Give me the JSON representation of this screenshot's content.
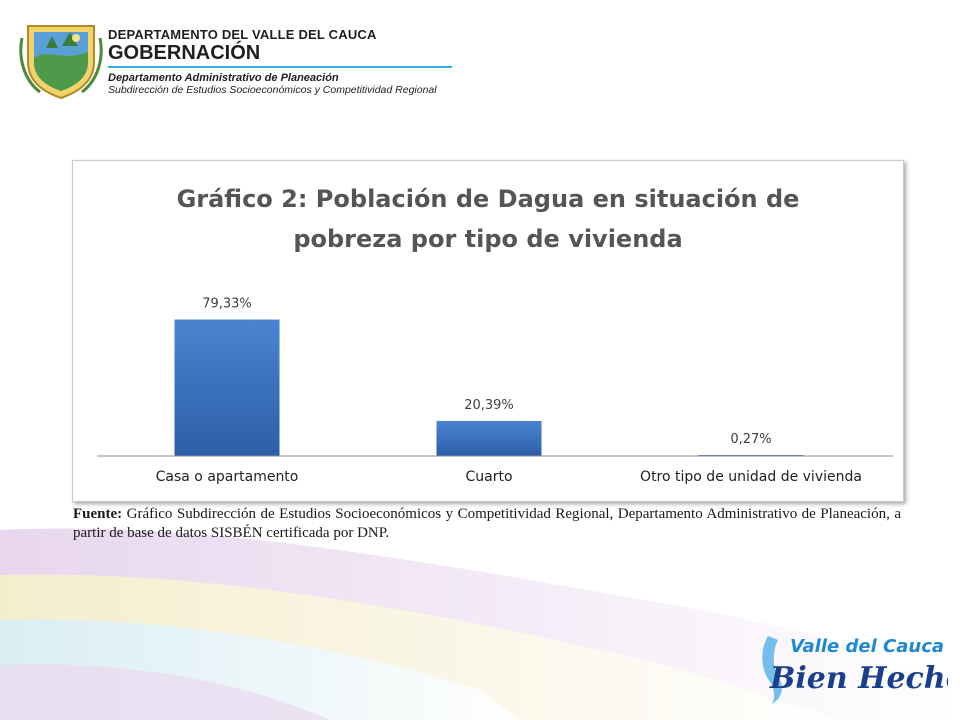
{
  "header": {
    "department": "DEPARTAMENTO DEL VALLE DEL CAUCA",
    "gobernacion": "GOBERNACIÓN",
    "admin_dept": "Departamento  Administrativo de Planeación",
    "subdirection": "Subdirección de Estudios Socioeconómicos y Competitividad Regional"
  },
  "chart_data": {
    "type": "bar",
    "title_line1": "Gráfico 2: Población de Dagua en situación de",
    "title_line2": "pobreza por tipo de vivienda",
    "categories": [
      "Casa o apartamento",
      "Cuarto",
      "Otro tipo de unidad de vivienda"
    ],
    "values": [
      79.33,
      20.39,
      0.27
    ],
    "data_labels": [
      "79,33%",
      "20,39%",
      "0,27%"
    ],
    "ylim": [
      0,
      100
    ],
    "grid": false,
    "legend": "none",
    "bar_color": "#3a6fbf"
  },
  "source": {
    "label": "Fuente:",
    "text": " Gráfico Subdirección de Estudios Socioeconómicos y Competitividad Regional, Departamento Administrativo de Planeación, a partir de base de datos SISBÉN certificada por DNP."
  },
  "logo": {
    "line1": "Valle del Cauca",
    "line2": "Bien Hecho!"
  },
  "colors": {
    "accent_cyan": "#2fb0e0",
    "logo_blue": "#1e6fc0"
  }
}
